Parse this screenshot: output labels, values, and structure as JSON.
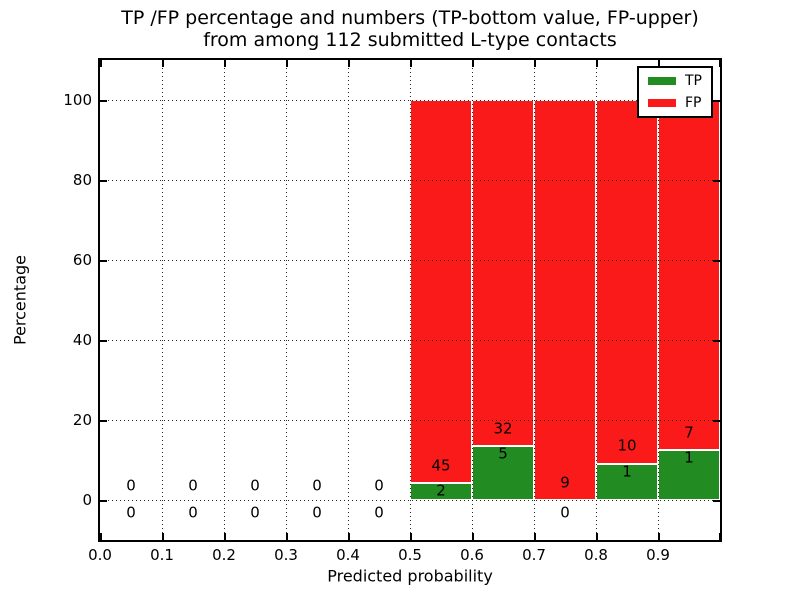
{
  "chart_data": {
    "type": "bar",
    "stacked": true,
    "normalization": "TP and FP shown as percent of each bin's total (TP+FP = 100%)",
    "title_line1": "TP /FP percentage and numbers (TP-bottom value, FP-upper)",
    "title_line2": "from among 112 submitted L-type contacts",
    "xlabel": "Predicted probability",
    "ylabel": "Percentage",
    "xlim": [
      0.0,
      1.0
    ],
    "ylim": [
      -10,
      110
    ],
    "xtick_labels": [
      "0.0",
      "0.1",
      "0.2",
      "0.3",
      "0.4",
      "0.5",
      "0.6",
      "0.7",
      "0.8",
      "0.9"
    ],
    "ytick_values": [
      0,
      20,
      40,
      60,
      80,
      100
    ],
    "grid": "dotted black, drawn above bars",
    "colors": {
      "tp": "#228b22",
      "fp": "#fa1a1a"
    },
    "total_contacts": 112,
    "bins": [
      {
        "x0": 0.0,
        "x1": 0.1,
        "tp": 0,
        "fp": 0
      },
      {
        "x0": 0.1,
        "x1": 0.2,
        "tp": 0,
        "fp": 0
      },
      {
        "x0": 0.2,
        "x1": 0.3,
        "tp": 0,
        "fp": 0
      },
      {
        "x0": 0.3,
        "x1": 0.4,
        "tp": 0,
        "fp": 0
      },
      {
        "x0": 0.4,
        "x1": 0.5,
        "tp": 0,
        "fp": 0
      },
      {
        "x0": 0.5,
        "x1": 0.6,
        "tp": 2,
        "fp": 45
      },
      {
        "x0": 0.6,
        "x1": 0.7,
        "tp": 5,
        "fp": 32
      },
      {
        "x0": 0.7,
        "x1": 0.8,
        "tp": 0,
        "fp": 9
      },
      {
        "x0": 0.8,
        "x1": 0.9,
        "tp": 1,
        "fp": 10
      },
      {
        "x0": 0.9,
        "x1": 1.0,
        "tp": 1,
        "fp": 7
      }
    ],
    "legend": {
      "position": "upper right",
      "entries": [
        {
          "label": "TP",
          "color": "#228b22"
        },
        {
          "label": "FP",
          "color": "#fa1a1a"
        }
      ]
    }
  }
}
